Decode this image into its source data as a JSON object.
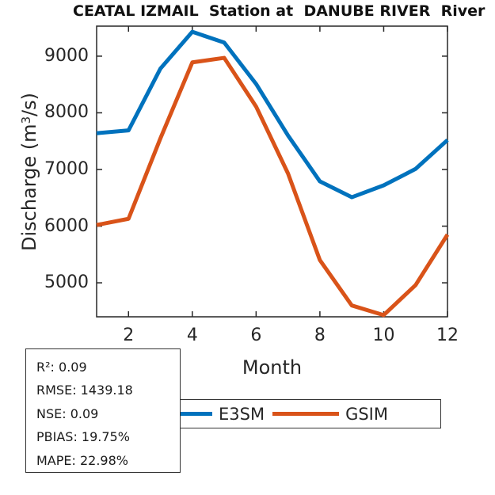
{
  "chart_data": {
    "type": "line",
    "title": "CEATAL IZMAIL  Station at  DANUBE RIVER  River",
    "xlabel": "Month",
    "ylabel": "Discharge (m³/s)",
    "ylabel_parts": {
      "prefix": "Discharge (m",
      "sup": "3",
      "suffix": "/s)"
    },
    "x": [
      1,
      2,
      3,
      4,
      5,
      6,
      7,
      8,
      9,
      10,
      11,
      12
    ],
    "xticks": [
      2,
      4,
      6,
      8,
      10,
      12
    ],
    "yticks": [
      5000,
      6000,
      7000,
      8000,
      9000
    ],
    "xlim": [
      1,
      12
    ],
    "ylim": [
      4400,
      9530
    ],
    "grid": false,
    "legend_position": "below-axes",
    "axis_color": "#262626",
    "line_width": 5,
    "series": [
      {
        "name": "E3SM",
        "color": "#0072BD",
        "values": [
          7640,
          7690,
          8780,
          9430,
          9240,
          8510,
          7600,
          6790,
          6510,
          6720,
          7010,
          7520
        ]
      },
      {
        "name": "GSIM",
        "color": "#D95319",
        "values": [
          6020,
          6130,
          7550,
          8890,
          8970,
          8110,
          6930,
          5400,
          4600,
          4430,
          4960,
          5850
        ]
      }
    ]
  },
  "legend": {
    "items": [
      {
        "label": "E3SM",
        "color": "#0072BD"
      },
      {
        "label": "GSIM",
        "color": "#D95319"
      }
    ]
  },
  "stats": {
    "lines": [
      "R²: 0.09",
      "RMSE: 1439.18",
      "NSE: 0.09",
      "PBIAS: 19.75%",
      "MAPE: 22.98%"
    ]
  }
}
